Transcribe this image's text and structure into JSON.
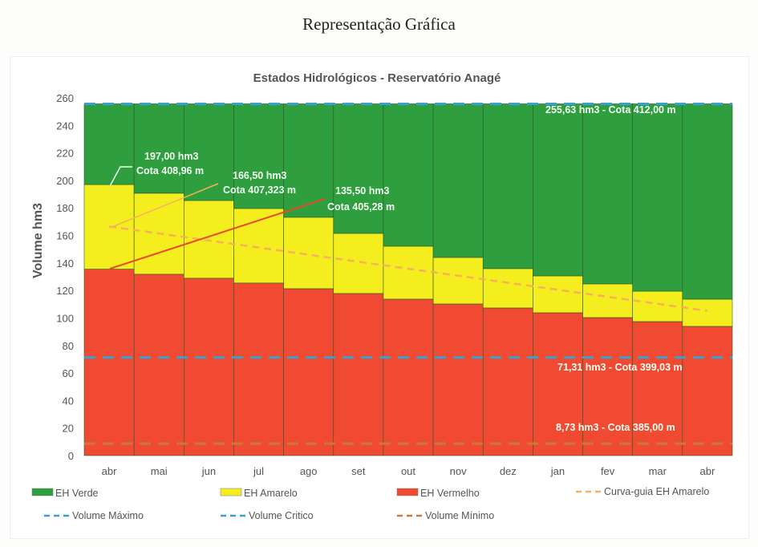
{
  "page_title": "Representação Gráfica",
  "chart_data": {
    "type": "bar",
    "stacked": true,
    "title": "Estados Hidrológicos - Reservatório Anagé",
    "ylabel": "Volume hm3",
    "xlabel": "",
    "ylim": [
      0,
      260
    ],
    "yticks": [
      0,
      20,
      40,
      60,
      80,
      100,
      120,
      140,
      160,
      180,
      200,
      220,
      240,
      260
    ],
    "categories": [
      "abr",
      "mai",
      "jun",
      "jul",
      "ago",
      "set",
      "out",
      "nov",
      "dez",
      "jan",
      "fev",
      "mar",
      "abr"
    ],
    "series": [
      {
        "name": "EH Vermelho",
        "color": "#f04a32",
        "top_values": [
          135.5,
          131.8,
          128.9,
          125.4,
          121.3,
          117.8,
          113.7,
          110.2,
          107.3,
          103.8,
          100.3,
          97.4,
          93.9
        ]
      },
      {
        "name": "EH Amarelo",
        "color": "#f5ee1e",
        "top_values": [
          197.0,
          190.7,
          185.4,
          179.6,
          173.2,
          161.5,
          152.2,
          144.0,
          135.9,
          130.6,
          124.8,
          119.5,
          113.7
        ]
      },
      {
        "name": "EH Verde",
        "color": "#2e9e3e",
        "top_values": [
          255.63,
          255.63,
          255.63,
          255.63,
          255.63,
          255.63,
          255.63,
          255.63,
          255.63,
          255.63,
          255.63,
          255.63,
          255.63
        ]
      }
    ],
    "lines": [
      {
        "name": "Curva-guia EH Amarelo",
        "color": "#f5b25a",
        "values": [
          166.5,
          161.4,
          156.3,
          151.2,
          146.0,
          140.9,
          135.8,
          130.7,
          125.6,
          120.5,
          115.4,
          110.3,
          105.2
        ]
      },
      {
        "name": "Volume Máximo",
        "color": "#3aa0d0",
        "value": 255.63
      },
      {
        "name": "Volume Crítico",
        "color": "#3aa0d0",
        "value": 71.31
      },
      {
        "name": "Volume Mínimo",
        "color": "#c87a3a",
        "value": 8.73
      }
    ],
    "annotations": [
      {
        "line1": "197,00 hm3",
        "line2": "Cota 408,96 m"
      },
      {
        "line1": "166,50 hm3",
        "line2": "Cota 407,323 m"
      },
      {
        "line1": "135,50 hm3",
        "line2": "Cota 405,28 m"
      },
      {
        "text": "255,63 hm3 - Cota 412,00 m"
      },
      {
        "text": "71,31 hm3 - Cota 399,03 m"
      },
      {
        "text": "8,73 hm3 - Cota 385,00 m"
      }
    ],
    "legend": {
      "placement": "bottom",
      "items": [
        "EH Verde",
        "EH Amarelo",
        "EH Vermelho",
        "Curva-guia EH Amarelo",
        "Volume Máximo",
        "Volume Critico",
        "Volume Mínimo"
      ]
    }
  }
}
